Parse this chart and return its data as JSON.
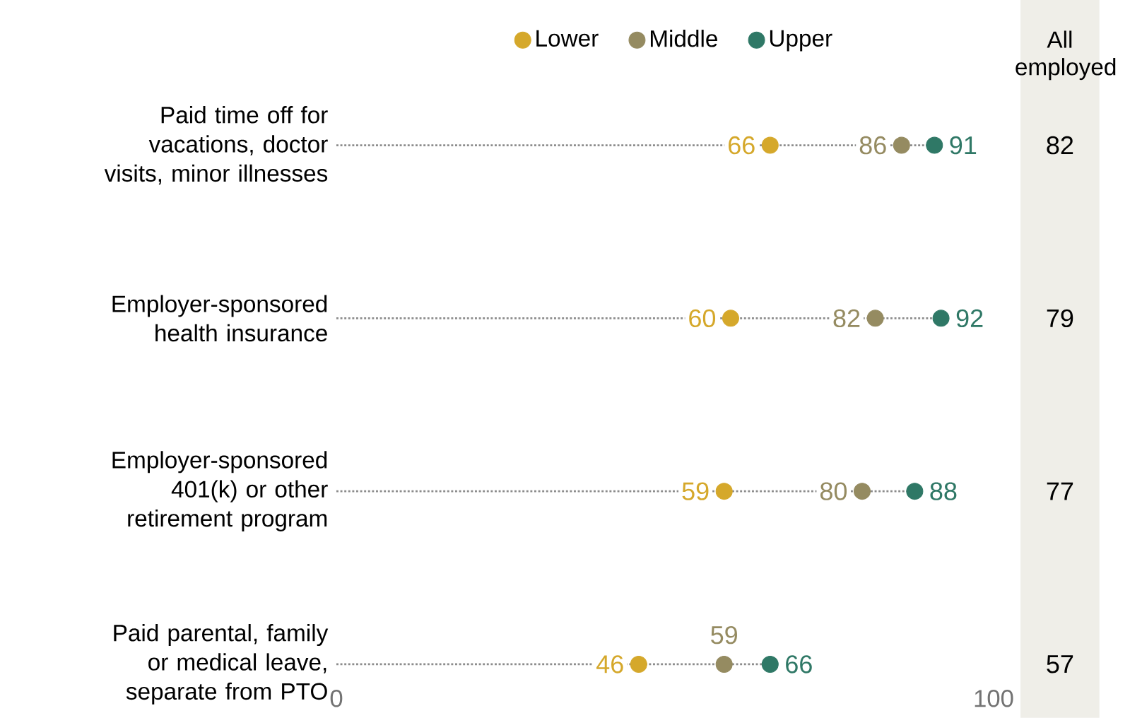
{
  "chart_data": {
    "type": "scatter",
    "orientation": "horizontal",
    "categories": [
      "Paid time off for vacations, doctor visits, minor illnesses",
      "Employer-sponsored health insurance",
      "Employer-sponsored 401(k) or other retirement program",
      "Paid parental, family or medical leave, separate from PTO"
    ],
    "series": [
      {
        "name": "Lower",
        "color": "#d5a82b",
        "values": [
          66,
          60,
          59,
          46
        ]
      },
      {
        "name": "Middle",
        "color": "#958b61",
        "values": [
          86,
          82,
          80,
          59
        ]
      },
      {
        "name": "Upper",
        "color": "#2f7866",
        "values": [
          91,
          92,
          88,
          66
        ]
      }
    ],
    "xlim": [
      0,
      100
    ],
    "xticks": [
      0,
      100
    ],
    "data_labels": true,
    "legend": "top",
    "marker": "circle",
    "annotations": [
      "All employed",
      "82",
      "79",
      "77",
      "57"
    ]
  }
}
